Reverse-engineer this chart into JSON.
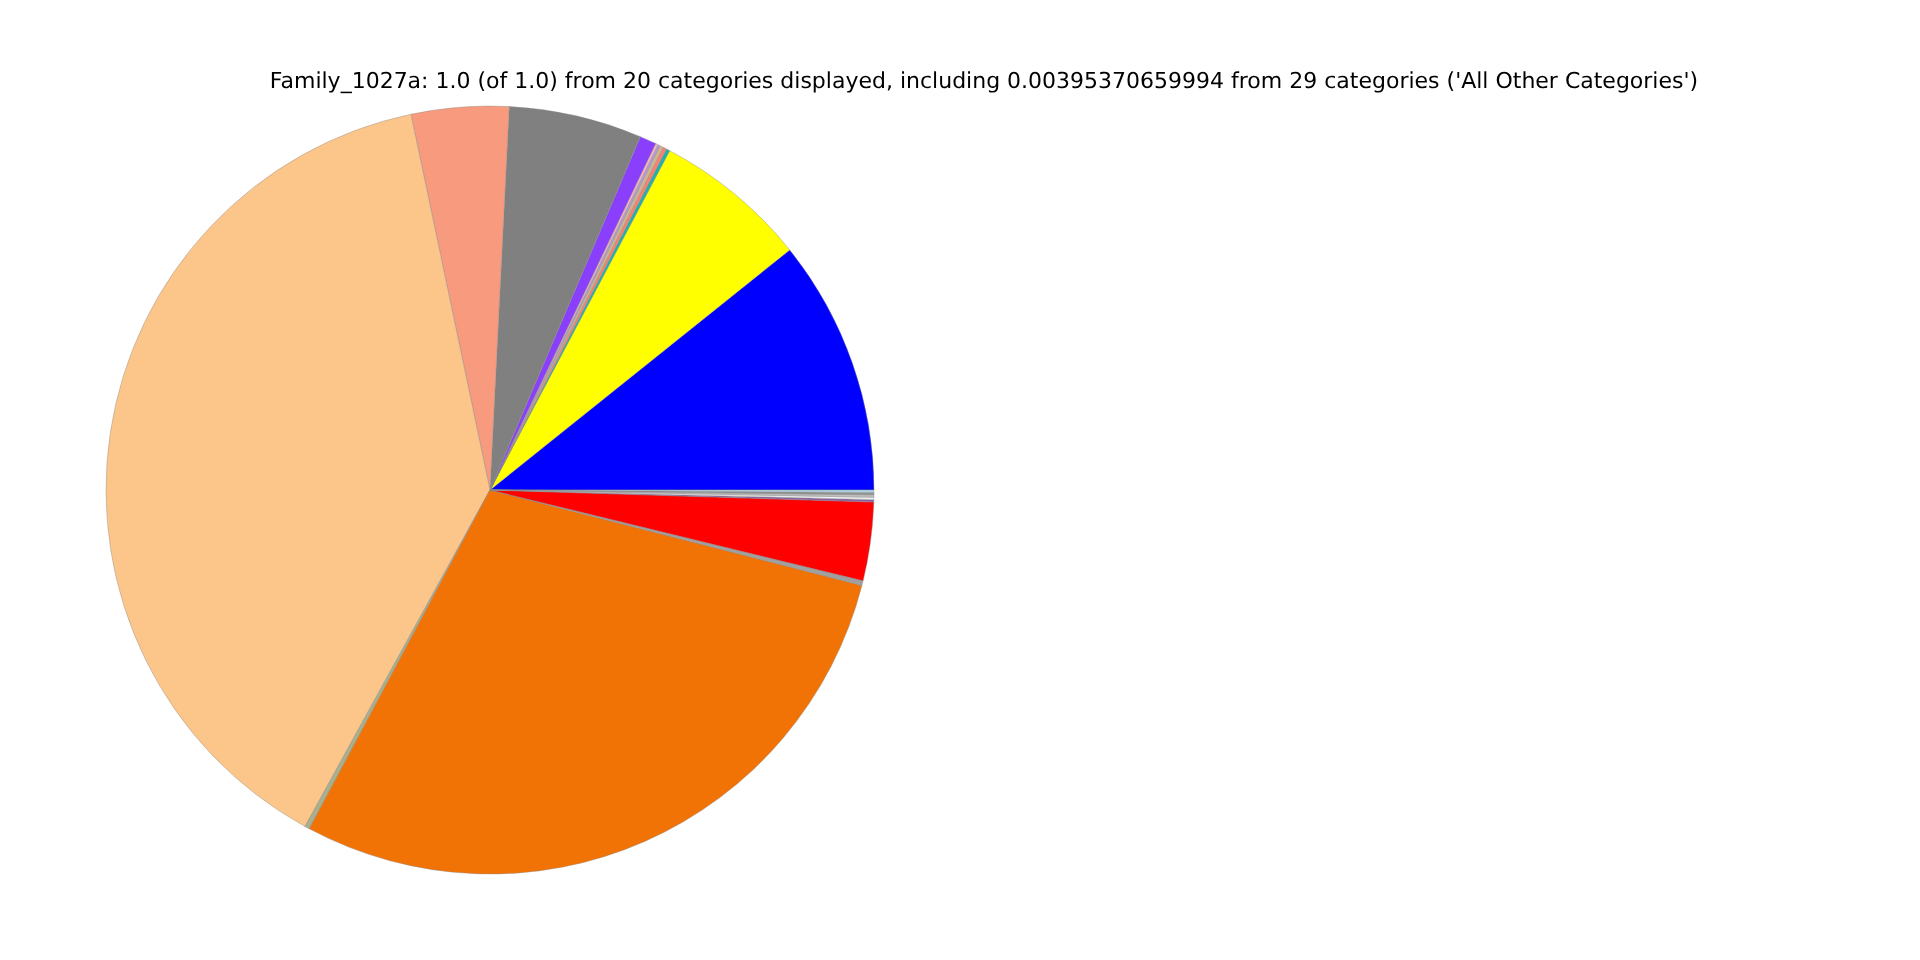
{
  "chart_data": {
    "type": "pie",
    "title": "Family_1027a: 1.0 (of 1.0) from 20 categories displayed, including 0.00395370659994 from 29 categories ('All Other Categories')",
    "categories": [
      null,
      null,
      null,
      null,
      null,
      null,
      null,
      null,
      null,
      null,
      null,
      null,
      null,
      null,
      null,
      null,
      null,
      null,
      null,
      null
    ],
    "values": [
      10.75,
      6.5,
      0.15,
      0.15,
      0.15,
      0.1,
      0.1,
      0.7,
      5.6,
      4.1,
      38.7,
      0.2,
      28.8,
      0.2,
      3.3,
      0.1,
      0.1,
      0.1,
      0.1,
      0.1
    ],
    "colors": [
      "#0000ff",
      "#ffff00",
      "#20b2aa",
      "#fa8072",
      "#d2b48c",
      "#b19cd9",
      "#ffb6c1",
      "#8a3ffc",
      "#808080",
      "#f89a7e",
      "#fcc68a",
      "#a9b08a",
      "#f27305",
      "#a0a0a0",
      "#ff0000",
      "#8e5ea2",
      "#f0f0f0",
      "#c0c0c0",
      "#909090",
      "#add8e6"
    ],
    "legend": false
  }
}
